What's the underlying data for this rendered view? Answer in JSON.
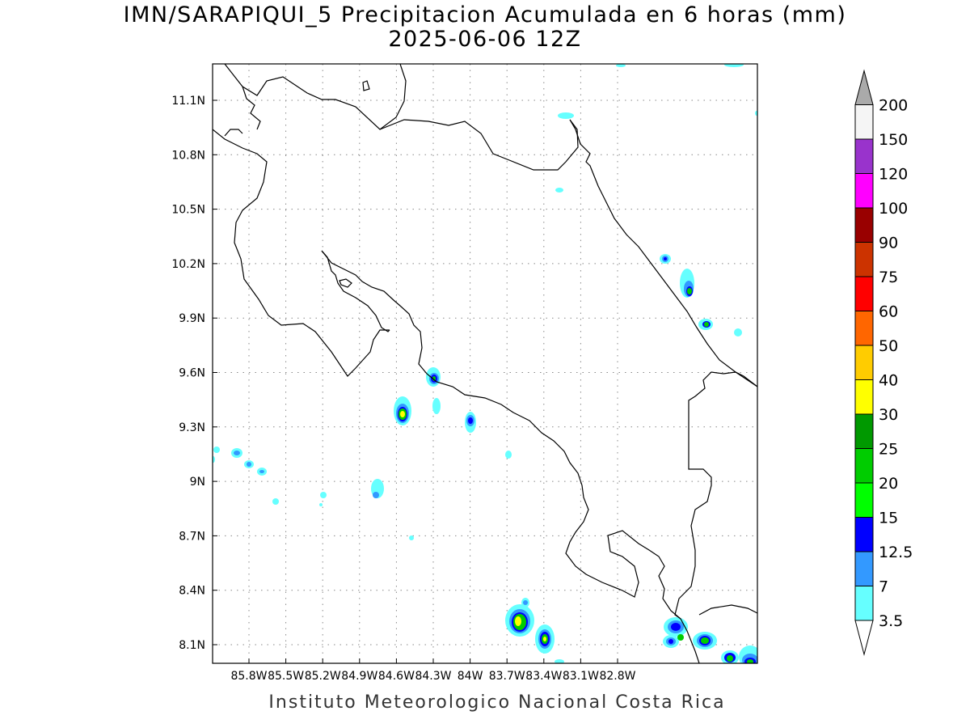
{
  "title": {
    "line1": "IMN/SARAPIQUI_5 Precipitacion Acumulada en 6 horas (mm)",
    "line2": "2025-06-06 12Z"
  },
  "credit": "Instituto Meteorologico Nacional Costa Rica",
  "map": {
    "lon_range": [
      -86.0,
      -83.0
    ],
    "lat_range": [
      8.0,
      11.3
    ],
    "grid": true,
    "x_ticks": [
      "85.8W",
      "85.5W",
      "85.2W",
      "84.9W",
      "84.6W",
      "84.3W",
      "84W",
      "83.7W",
      "83.4W",
      "83.1W",
      "82.8W"
    ],
    "y_ticks": [
      "11.1N",
      "10.8N",
      "10.5N",
      "10.2N",
      "9.9N",
      "9.6N",
      "9.3N",
      "9N",
      "8.7N",
      "8.4N",
      "8.1N"
    ]
  },
  "colorbar": {
    "levels": [
      "3.5",
      "7",
      "12.5",
      "15",
      "20",
      "25",
      "30",
      "40",
      "50",
      "60",
      "75",
      "90",
      "100",
      "120",
      "150",
      "200"
    ],
    "colors": [
      "#66ffff",
      "#3399ff",
      "#0000ff",
      "#00ff00",
      "#00cc00",
      "#009900",
      "#ffff00",
      "#ffcc00",
      "#ff6600",
      "#ff0000",
      "#cc3300",
      "#990000",
      "#ff00ff",
      "#9933cc",
      "#f5f5f5",
      "#aaaaaa"
    ]
  }
}
